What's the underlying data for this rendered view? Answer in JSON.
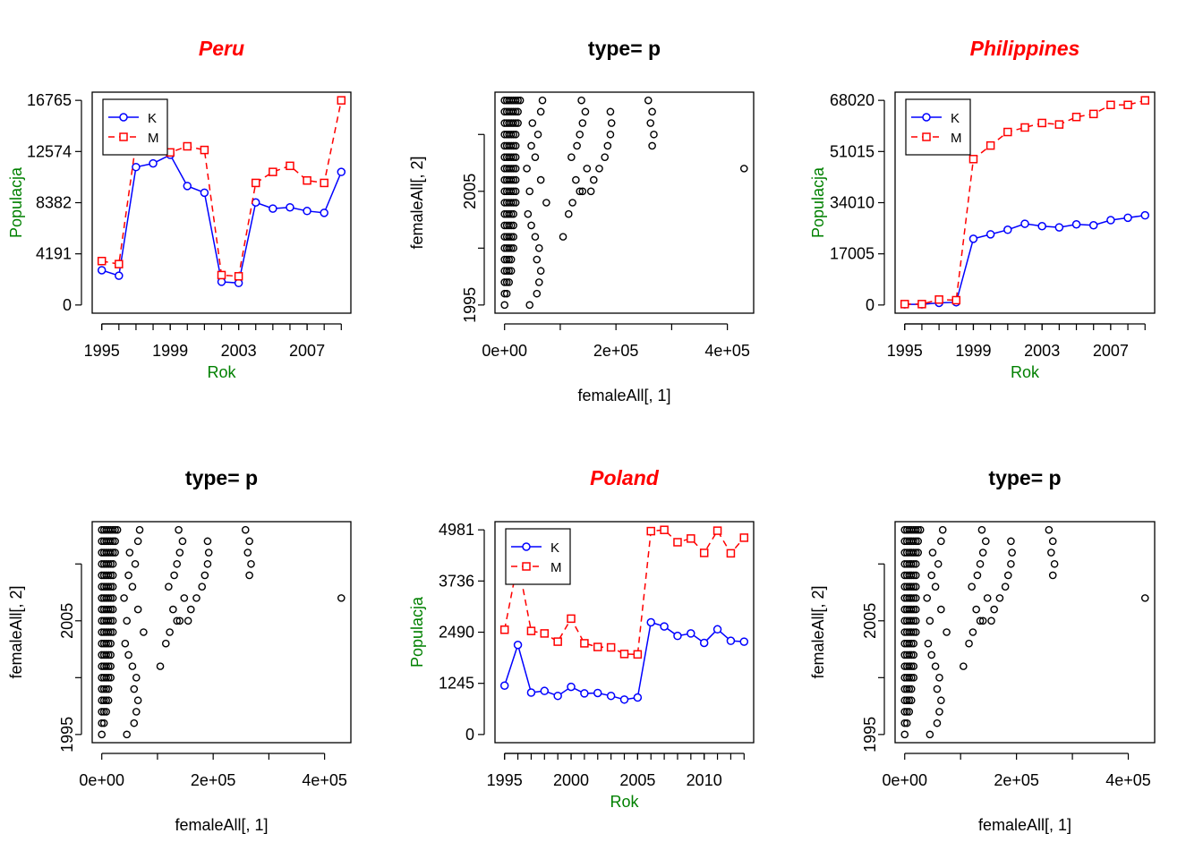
{
  "colors": {
    "k_series": "#0000ff",
    "m_series": "#ff0000",
    "axis_label_green": "#008000",
    "title_red": "#ff0000",
    "ink": "#000000"
  },
  "chart_data": [
    {
      "id": "peru",
      "type": "line",
      "title": "Peru",
      "xlabel": "Rok",
      "ylabel": "Populacja",
      "xlim": [
        1995,
        2009
      ],
      "ylim": [
        0,
        16765
      ],
      "x_ticks": [
        1995,
        1999,
        2003,
        2007
      ],
      "y_ticks": [
        0,
        4191,
        8382,
        12574,
        16765
      ],
      "legend": {
        "position": "top-left",
        "labels": [
          "K",
          "M"
        ]
      },
      "x": [
        1995,
        1996,
        1997,
        1998,
        1999,
        2000,
        2001,
        2002,
        2003,
        2004,
        2005,
        2006,
        2007,
        2008,
        2009
      ],
      "series": [
        {
          "name": "K",
          "values": [
            2850,
            2400,
            11300,
            11600,
            12300,
            9750,
            9200,
            1900,
            1800,
            8400,
            7900,
            8000,
            7700,
            7550,
            10900
          ]
        },
        {
          "name": "M",
          "values": [
            3600,
            3350,
            13300,
            13300,
            12500,
            13000,
            12700,
            2450,
            2350,
            10000,
            10900,
            11400,
            10200,
            10000,
            16765
          ]
        }
      ]
    },
    {
      "id": "scatter-1",
      "type": "scatter",
      "title": "type= p",
      "xlabel": "femaleAll[, 1]",
      "ylabel": "femaleAll[, 2]",
      "xlim": [
        0,
        430000
      ],
      "ylim": [
        1995,
        2013
      ],
      "x_ticks": [
        0,
        100000,
        200000,
        300000,
        400000
      ],
      "x_tick_labels": [
        "0e+00",
        "",
        "2e+05",
        "",
        "4e+05"
      ],
      "y_ticks": [
        1995,
        2000,
        2005,
        2010
      ],
      "y_tick_labels": [
        "1995",
        "",
        "2005",
        ""
      ],
      "points": {
        "years": [
          1995,
          1996,
          1997,
          1998,
          1999,
          2000,
          2001,
          2002,
          2003,
          2004,
          2005,
          2006,
          2007,
          2008,
          2009,
          2010,
          2011,
          2012,
          2013
        ],
        "dense_max": [
          3000,
          5000,
          8000,
          12000,
          15000,
          16000,
          17000,
          18000,
          19000,
          20000,
          20000,
          20000,
          20000,
          20000,
          20000,
          22000,
          24000,
          26000,
          28000
        ],
        "extra": [
          [
            [
              45000,
              1995
            ],
            [
              58000,
              1996
            ],
            [
              62000,
              1997
            ],
            [
              65000,
              1998
            ],
            [
              58000,
              1999
            ],
            [
              62000,
              2000
            ],
            [
              55000,
              2001
            ],
            [
              48000,
              2002
            ],
            [
              42000,
              2003
            ],
            [
              75000,
              2004
            ],
            [
              45000,
              2005
            ],
            [
              65000,
              2006
            ],
            [
              40000,
              2007
            ],
            [
              55000,
              2008
            ],
            [
              48000,
              2009
            ],
            [
              60000,
              2010
            ],
            [
              50000,
              2011
            ],
            [
              65000,
              2012
            ],
            [
              68000,
              2013
            ]
          ],
          [
            [
              105000,
              2001
            ],
            [
              115000,
              2003
            ],
            [
              122000,
              2004
            ],
            [
              135000,
              2005
            ],
            [
              128000,
              2006
            ],
            [
              148000,
              2007
            ],
            [
              140000,
              2005
            ],
            [
              120000,
              2008
            ],
            [
              130000,
              2009
            ],
            [
              135000,
              2010
            ],
            [
              140000,
              2011
            ],
            [
              145000,
              2012
            ],
            [
              138000,
              2013
            ]
          ],
          [
            [
              160000,
              2006
            ],
            [
              155000,
              2005
            ],
            [
              170000,
              2007
            ],
            [
              180000,
              2008
            ],
            [
              185000,
              2009
            ],
            [
              190000,
              2010
            ],
            [
              192000,
              2011
            ],
            [
              190000,
              2012
            ]
          ],
          [
            [
              265000,
              2009
            ],
            [
              268000,
              2010
            ],
            [
              262000,
              2011
            ],
            [
              265000,
              2012
            ],
            [
              258000,
              2013
            ]
          ],
          [
            [
              430000,
              2007
            ]
          ]
        ]
      }
    },
    {
      "id": "philippines",
      "type": "line",
      "title": "Philippines",
      "xlabel": "Rok",
      "ylabel": "Populacja",
      "xlim": [
        1995,
        2009
      ],
      "ylim": [
        0,
        68020
      ],
      "x_ticks": [
        1995,
        1999,
        2003,
        2007
      ],
      "y_ticks": [
        0,
        17005,
        34010,
        51015,
        68020
      ],
      "legend": {
        "position": "top-left",
        "labels": [
          "K",
          "M"
        ]
      },
      "x": [
        1995,
        1996,
        1997,
        1998,
        1999,
        2000,
        2001,
        2002,
        2003,
        2004,
        2005,
        2006,
        2007,
        2008,
        2009
      ],
      "series": [
        {
          "name": "K",
          "values": [
            200,
            200,
            700,
            900,
            22000,
            23500,
            25000,
            27000,
            26200,
            25800,
            26800,
            26500,
            28200,
            29000,
            29800
          ]
        },
        {
          "name": "M",
          "values": [
            300,
            300,
            1800,
            1600,
            48500,
            53000,
            57500,
            59000,
            60500,
            60000,
            62500,
            63500,
            66500,
            66500,
            68020
          ]
        }
      ]
    },
    {
      "id": "scatter-2",
      "type": "scatter",
      "title": "type= p",
      "xlabel": "femaleAll[, 1]",
      "ylabel": "femaleAll[, 2]",
      "xlim": [
        0,
        430000
      ],
      "ylim": [
        1995,
        2013
      ],
      "x_ticks": [
        0,
        100000,
        200000,
        300000,
        400000
      ],
      "x_tick_labels": [
        "0e+00",
        "",
        "2e+05",
        "",
        "4e+05"
      ],
      "y_ticks": [
        1995,
        2000,
        2005,
        2010
      ],
      "y_tick_labels": [
        "1995",
        "",
        "2005",
        ""
      ],
      "points": "same as scatter-1"
    },
    {
      "id": "poland",
      "type": "line",
      "title": "Poland",
      "xlabel": "Rok",
      "ylabel": "Populacja",
      "xlim": [
        1995,
        2013
      ],
      "ylim": [
        0,
        4981
      ],
      "x_ticks": [
        1995,
        2000,
        2005,
        2010
      ],
      "y_ticks": [
        0,
        1245,
        2490,
        3736,
        4981
      ],
      "legend": {
        "position": "top-left",
        "labels": [
          "K",
          "M"
        ]
      },
      "x": [
        1995,
        1996,
        1997,
        1998,
        1999,
        2000,
        2001,
        2002,
        2003,
        2004,
        2005,
        2006,
        2007,
        2008,
        2009,
        2010,
        2011,
        2012,
        2013
      ],
      "series": [
        {
          "name": "K",
          "values": [
            1190,
            2180,
            1020,
            1060,
            940,
            1160,
            1000,
            1010,
            940,
            850,
            900,
            2730,
            2630,
            2400,
            2460,
            2230,
            2560,
            2280,
            2260
          ]
        },
        {
          "name": "M",
          "values": [
            2550,
            4200,
            2520,
            2460,
            2260,
            2820,
            2220,
            2130,
            2120,
            1960,
            1950,
            4950,
            4980,
            4680,
            4770,
            4420,
            4960,
            4410,
            4790
          ]
        }
      ]
    },
    {
      "id": "scatter-3",
      "type": "scatter",
      "title": "type= p",
      "xlabel": "femaleAll[, 1]",
      "ylabel": "femaleAll[, 2]",
      "xlim": [
        0,
        430000
      ],
      "ylim": [
        1995,
        2013
      ],
      "x_ticks": [
        0,
        100000,
        200000,
        300000,
        400000
      ],
      "x_tick_labels": [
        "0e+00",
        "",
        "2e+05",
        "",
        "4e+05"
      ],
      "y_ticks": [
        1995,
        2000,
        2005,
        2010
      ],
      "y_tick_labels": [
        "1995",
        "",
        "2005",
        ""
      ],
      "points": "same as scatter-1"
    }
  ]
}
